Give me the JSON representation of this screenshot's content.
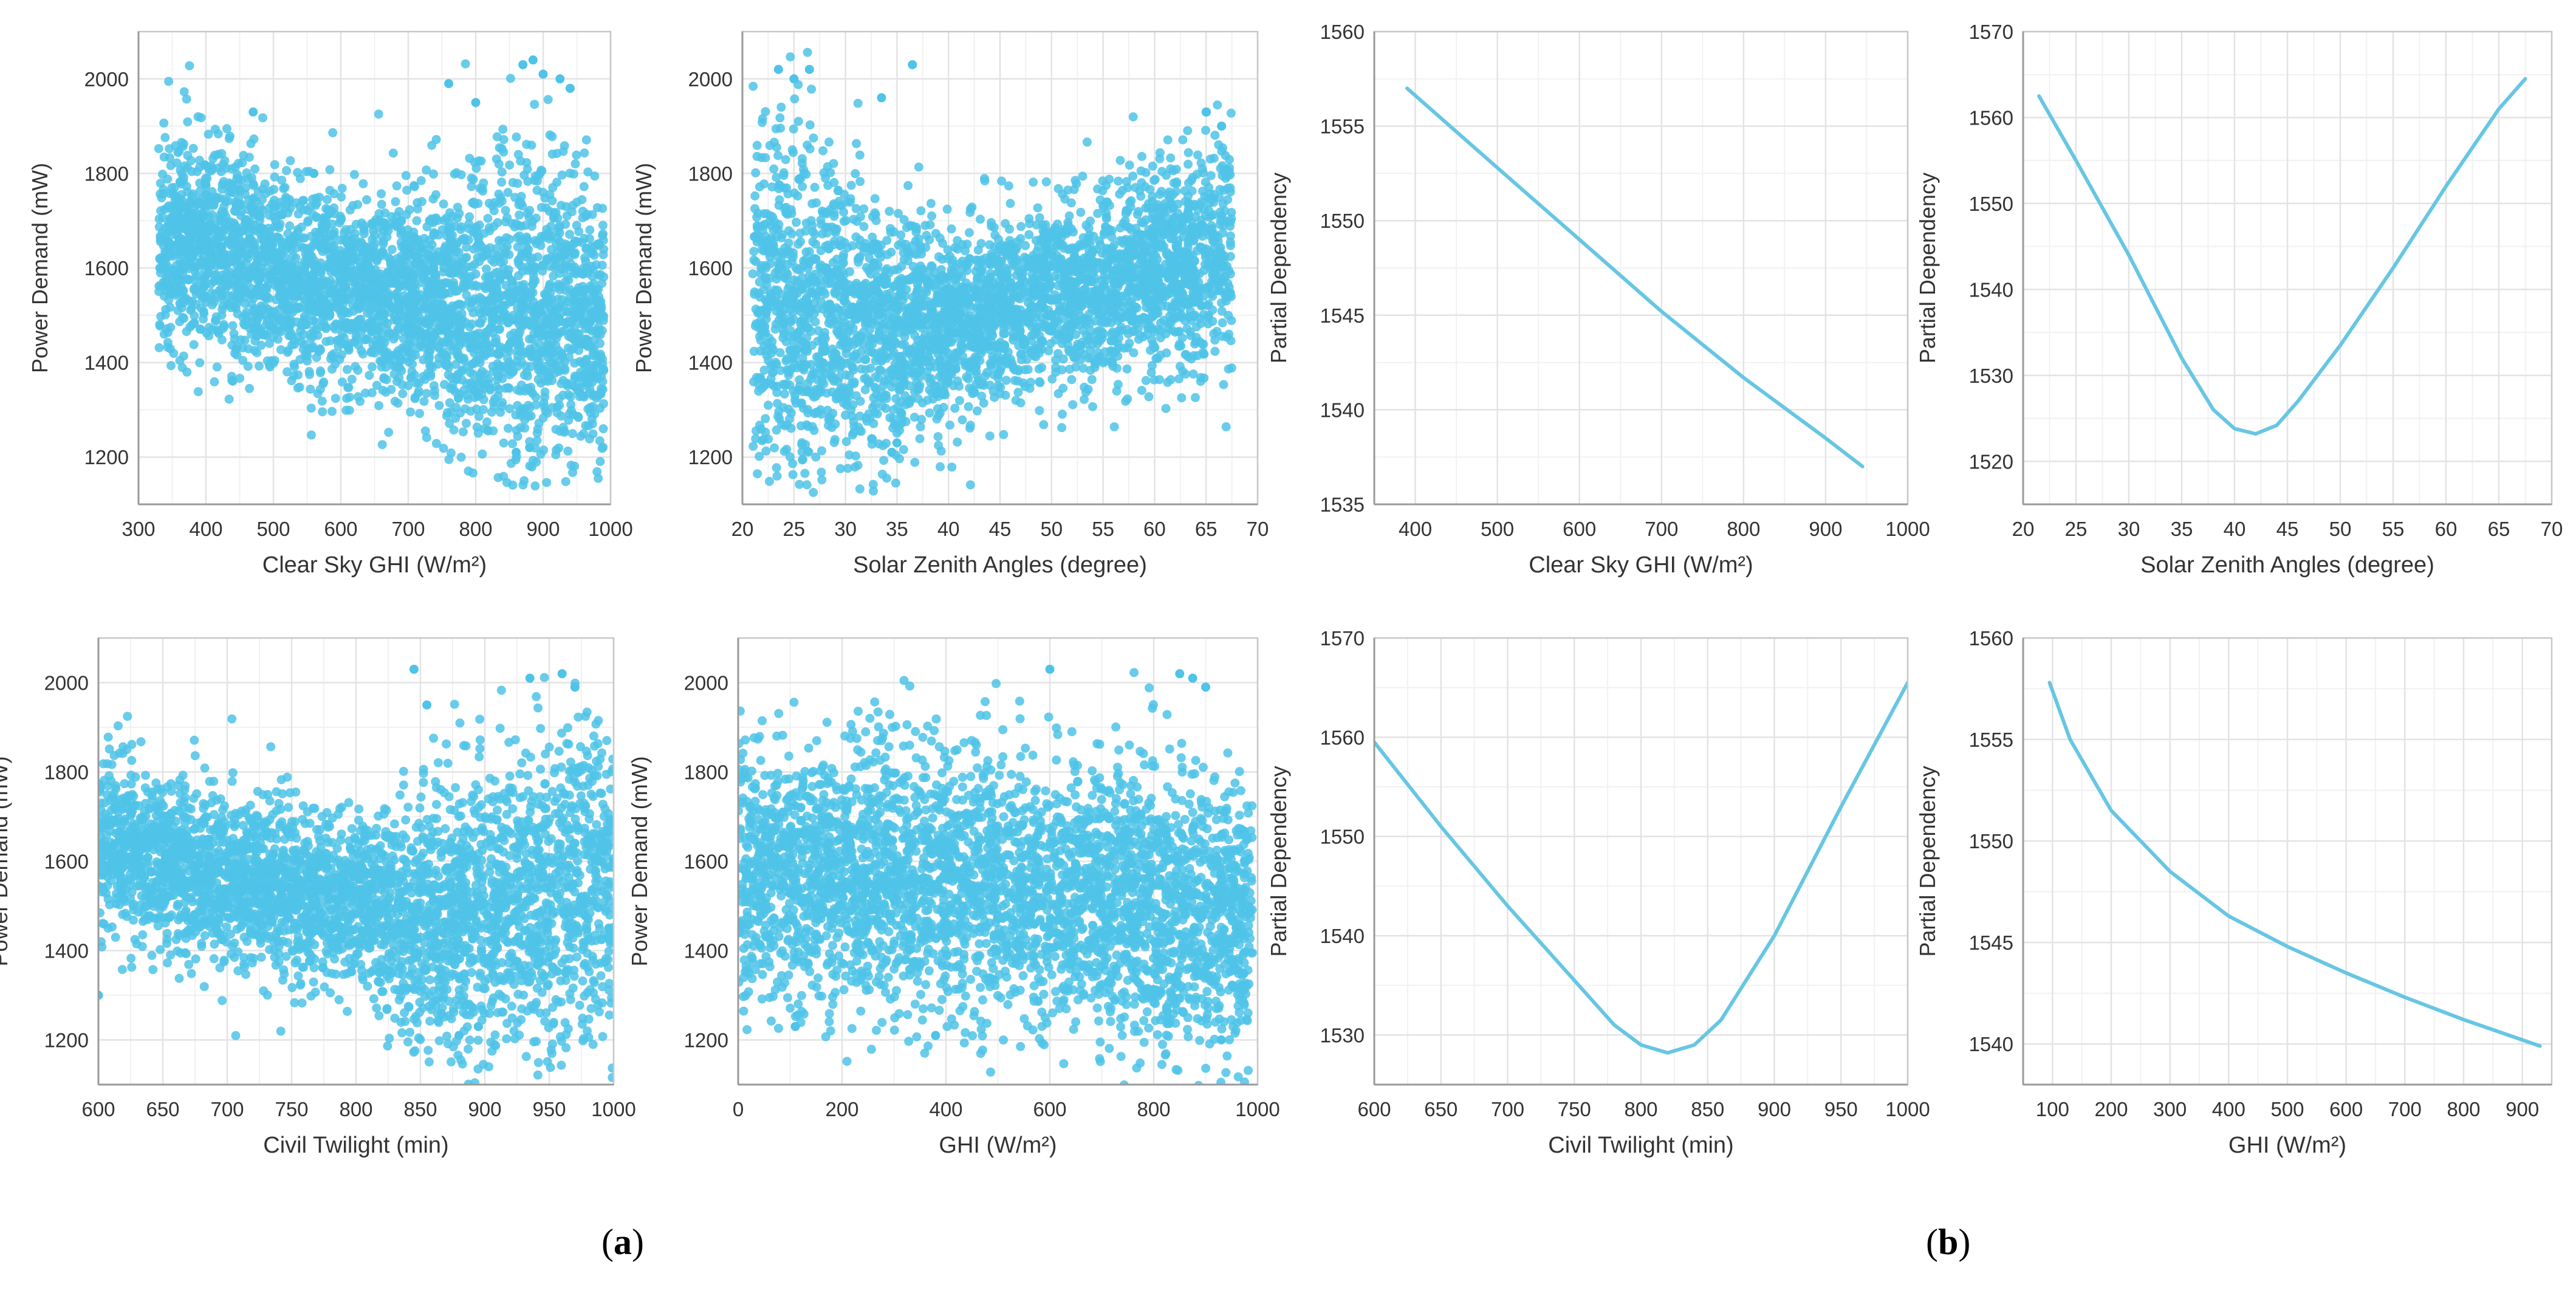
{
  "panel_labels": {
    "a": "a",
    "b": "b"
  },
  "style": {
    "point_color": "#4fc3e8",
    "line_color": "#67c6e3",
    "grid_color": "#e3e3e3",
    "axis_color": "#9a9a9a"
  },
  "chart_data": [
    {
      "id": "a1",
      "type": "scatter",
      "xlabel": "Clear Sky GHI (W/m²)",
      "ylabel": "Power Demand (mW)",
      "xlim": [
        300,
        1000
      ],
      "ylim": [
        1100,
        2100
      ],
      "xticks": [
        300,
        400,
        500,
        600,
        700,
        800,
        900,
        1000
      ],
      "yticks": [
        1200,
        1400,
        1600,
        1800,
        2000
      ],
      "data_x_range": [
        330,
        990
      ],
      "trend": [
        [
          330,
          1630
        ],
        [
          400,
          1650
        ],
        [
          500,
          1590
        ],
        [
          600,
          1560
        ],
        [
          700,
          1530
        ],
        [
          800,
          1520
        ],
        [
          900,
          1510
        ],
        [
          990,
          1480
        ]
      ],
      "spread": [
        [
          330,
          130
        ],
        [
          500,
          120
        ],
        [
          700,
          120
        ],
        [
          850,
          200
        ],
        [
          990,
          170
        ]
      ],
      "n_points": 3500,
      "seed": 11,
      "outliers": [
        [
          470,
          1930
        ],
        [
          560,
          1800
        ],
        [
          760,
          1990
        ],
        [
          800,
          1950
        ],
        [
          870,
          2030
        ],
        [
          885,
          2040
        ],
        [
          900,
          2010
        ],
        [
          925,
          2000
        ],
        [
          940,
          1980
        ],
        [
          860,
          1210
        ],
        [
          880,
          1220
        ]
      ]
    },
    {
      "id": "a2",
      "type": "scatter",
      "xlabel": "Solar Zenith Angles (degree)",
      "ylabel": "Power Demand (mW)",
      "xlim": [
        20,
        70
      ],
      "ylim": [
        1100,
        2100
      ],
      "xticks": [
        20,
        25,
        30,
        35,
        40,
        45,
        50,
        55,
        60,
        65,
        70
      ],
      "yticks": [
        1200,
        1400,
        1600,
        1800,
        2000
      ],
      "data_x_range": [
        21,
        67.5
      ],
      "trend": [
        [
          21,
          1560
        ],
        [
          25,
          1530
        ],
        [
          30,
          1500
        ],
        [
          35,
          1460
        ],
        [
          40,
          1480
        ],
        [
          45,
          1510
        ],
        [
          50,
          1540
        ],
        [
          55,
          1560
        ],
        [
          60,
          1590
        ],
        [
          65,
          1620
        ],
        [
          67.5,
          1640
        ]
      ],
      "spread": [
        [
          21,
          220
        ],
        [
          30,
          200
        ],
        [
          40,
          120
        ],
        [
          50,
          110
        ],
        [
          60,
          120
        ],
        [
          67.5,
          150
        ]
      ],
      "n_points": 3500,
      "seed": 23,
      "outliers": [
        [
          23.5,
          2020
        ],
        [
          25,
          2000
        ],
        [
          26.5,
          2020
        ],
        [
          33.5,
          1960
        ],
        [
          36.5,
          2030
        ],
        [
          65,
          1930
        ],
        [
          66.5,
          1900
        ],
        [
          34.5,
          1210
        ],
        [
          35,
          1230
        ]
      ]
    },
    {
      "id": "a3",
      "type": "scatter",
      "xlabel": "Civil Twilight (min)",
      "ylabel": "Power Demand (mW)",
      "xlim": [
        600,
        1000
      ],
      "ylim": [
        1100,
        2100
      ],
      "xticks": [
        600,
        650,
        700,
        750,
        800,
        850,
        900,
        950,
        1000
      ],
      "yticks": [
        1200,
        1400,
        1600,
        1800,
        2000
      ],
      "data_x_range": [
        600,
        1000
      ],
      "trend": [
        [
          600,
          1640
        ],
        [
          650,
          1600
        ],
        [
          700,
          1560
        ],
        [
          750,
          1530
        ],
        [
          800,
          1500
        ],
        [
          850,
          1460
        ],
        [
          900,
          1480
        ],
        [
          950,
          1520
        ],
        [
          1000,
          1540
        ]
      ],
      "spread": [
        [
          600,
          120
        ],
        [
          700,
          110
        ],
        [
          800,
          110
        ],
        [
          870,
          180
        ],
        [
          950,
          220
        ],
        [
          1000,
          200
        ]
      ],
      "n_points": 3500,
      "seed": 37,
      "outliers": [
        [
          845,
          2030
        ],
        [
          855,
          1950
        ],
        [
          935,
          2010
        ],
        [
          960,
          2020
        ],
        [
          970,
          1990
        ],
        [
          880,
          1210
        ],
        [
          895,
          1230
        ],
        [
          600,
          1300
        ]
      ]
    },
    {
      "id": "a4",
      "type": "scatter",
      "xlabel": "GHI (W/m²)",
      "ylabel": "Power Demand (mW)",
      "xlim": [
        0,
        1000
      ],
      "ylim": [
        1100,
        2100
      ],
      "xticks": [
        0,
        200,
        400,
        600,
        800,
        1000
      ],
      "yticks": [
        1200,
        1400,
        1600,
        1800,
        2000
      ],
      "data_x_range": [
        0,
        990
      ],
      "trend": [
        [
          0,
          1560
        ],
        [
          200,
          1570
        ],
        [
          400,
          1570
        ],
        [
          600,
          1520
        ],
        [
          800,
          1500
        ],
        [
          990,
          1470
        ]
      ],
      "spread": [
        [
          0,
          170
        ],
        [
          400,
          180
        ],
        [
          600,
          160
        ],
        [
          800,
          190
        ],
        [
          990,
          160
        ]
      ],
      "n_points": 3500,
      "seed": 53,
      "outliers": [
        [
          600,
          2030
        ],
        [
          850,
          2020
        ],
        [
          875,
          2010
        ],
        [
          900,
          1990
        ],
        [
          380,
          1210
        ],
        [
          930,
          1200
        ],
        [
          110,
          1230
        ]
      ]
    },
    {
      "id": "b1",
      "type": "line",
      "xlabel": "Clear Sky GHI (W/m²)",
      "ylabel": "Partial Dependency",
      "xlim": [
        350,
        1000
      ],
      "ylim": [
        1535,
        1560
      ],
      "xticks": [
        400,
        500,
        600,
        700,
        800,
        900,
        1000
      ],
      "yticks": [
        1535,
        1540,
        1545,
        1550,
        1555,
        1560
      ],
      "points": [
        [
          390,
          1557
        ],
        [
          500,
          1552.8
        ],
        [
          600,
          1549
        ],
        [
          700,
          1545.2
        ],
        [
          800,
          1541.7
        ],
        [
          900,
          1538.5
        ],
        [
          945,
          1537
        ]
      ]
    },
    {
      "id": "b2",
      "type": "line",
      "xlabel": "Solar Zenith Angles (degree)",
      "ylabel": "Partial Dependency",
      "xlim": [
        20,
        70
      ],
      "ylim": [
        1515,
        1570
      ],
      "xticks": [
        20,
        25,
        30,
        35,
        40,
        45,
        50,
        55,
        60,
        65,
        70
      ],
      "yticks": [
        1520,
        1530,
        1540,
        1550,
        1560,
        1570
      ],
      "points": [
        [
          21.5,
          1562.5
        ],
        [
          25,
          1555
        ],
        [
          30,
          1544
        ],
        [
          35,
          1532
        ],
        [
          38,
          1526
        ],
        [
          40,
          1523.8
        ],
        [
          42,
          1523.2
        ],
        [
          44,
          1524.2
        ],
        [
          46,
          1527
        ],
        [
          50,
          1533.5
        ],
        [
          55,
          1542.5
        ],
        [
          60,
          1552
        ],
        [
          65,
          1561
        ],
        [
          67.5,
          1564.5
        ]
      ]
    },
    {
      "id": "b3",
      "type": "line",
      "xlabel": "Civil Twilight (min)",
      "ylabel": "Partial Dependency",
      "xlim": [
        600,
        1000
      ],
      "ylim": [
        1525,
        1570
      ],
      "xticks": [
        600,
        650,
        700,
        750,
        800,
        850,
        900,
        950,
        1000
      ],
      "yticks": [
        1530,
        1540,
        1550,
        1560,
        1570
      ],
      "points": [
        [
          600,
          1559.5
        ],
        [
          650,
          1551
        ],
        [
          700,
          1543
        ],
        [
          750,
          1535.5
        ],
        [
          780,
          1531
        ],
        [
          800,
          1529
        ],
        [
          820,
          1528.2
        ],
        [
          840,
          1529
        ],
        [
          860,
          1531.5
        ],
        [
          900,
          1540
        ],
        [
          950,
          1553
        ],
        [
          1000,
          1565.5
        ]
      ]
    },
    {
      "id": "b4",
      "type": "line",
      "xlabel": "GHI (W/m²)",
      "ylabel": "Partial Dependency",
      "xlim": [
        50,
        950
      ],
      "ylim": [
        1538,
        1560
      ],
      "xticks": [
        100,
        200,
        300,
        400,
        500,
        600,
        700,
        800,
        900
      ],
      "yticks": [
        1540,
        1545,
        1550,
        1555,
        1560
      ],
      "points": [
        [
          95,
          1557.8
        ],
        [
          130,
          1555
        ],
        [
          200,
          1551.5
        ],
        [
          300,
          1548.5
        ],
        [
          400,
          1546.3
        ],
        [
          500,
          1544.8
        ],
        [
          600,
          1543.5
        ],
        [
          700,
          1542.3
        ],
        [
          800,
          1541.2
        ],
        [
          900,
          1540.2
        ],
        [
          930,
          1539.9
        ]
      ]
    }
  ]
}
